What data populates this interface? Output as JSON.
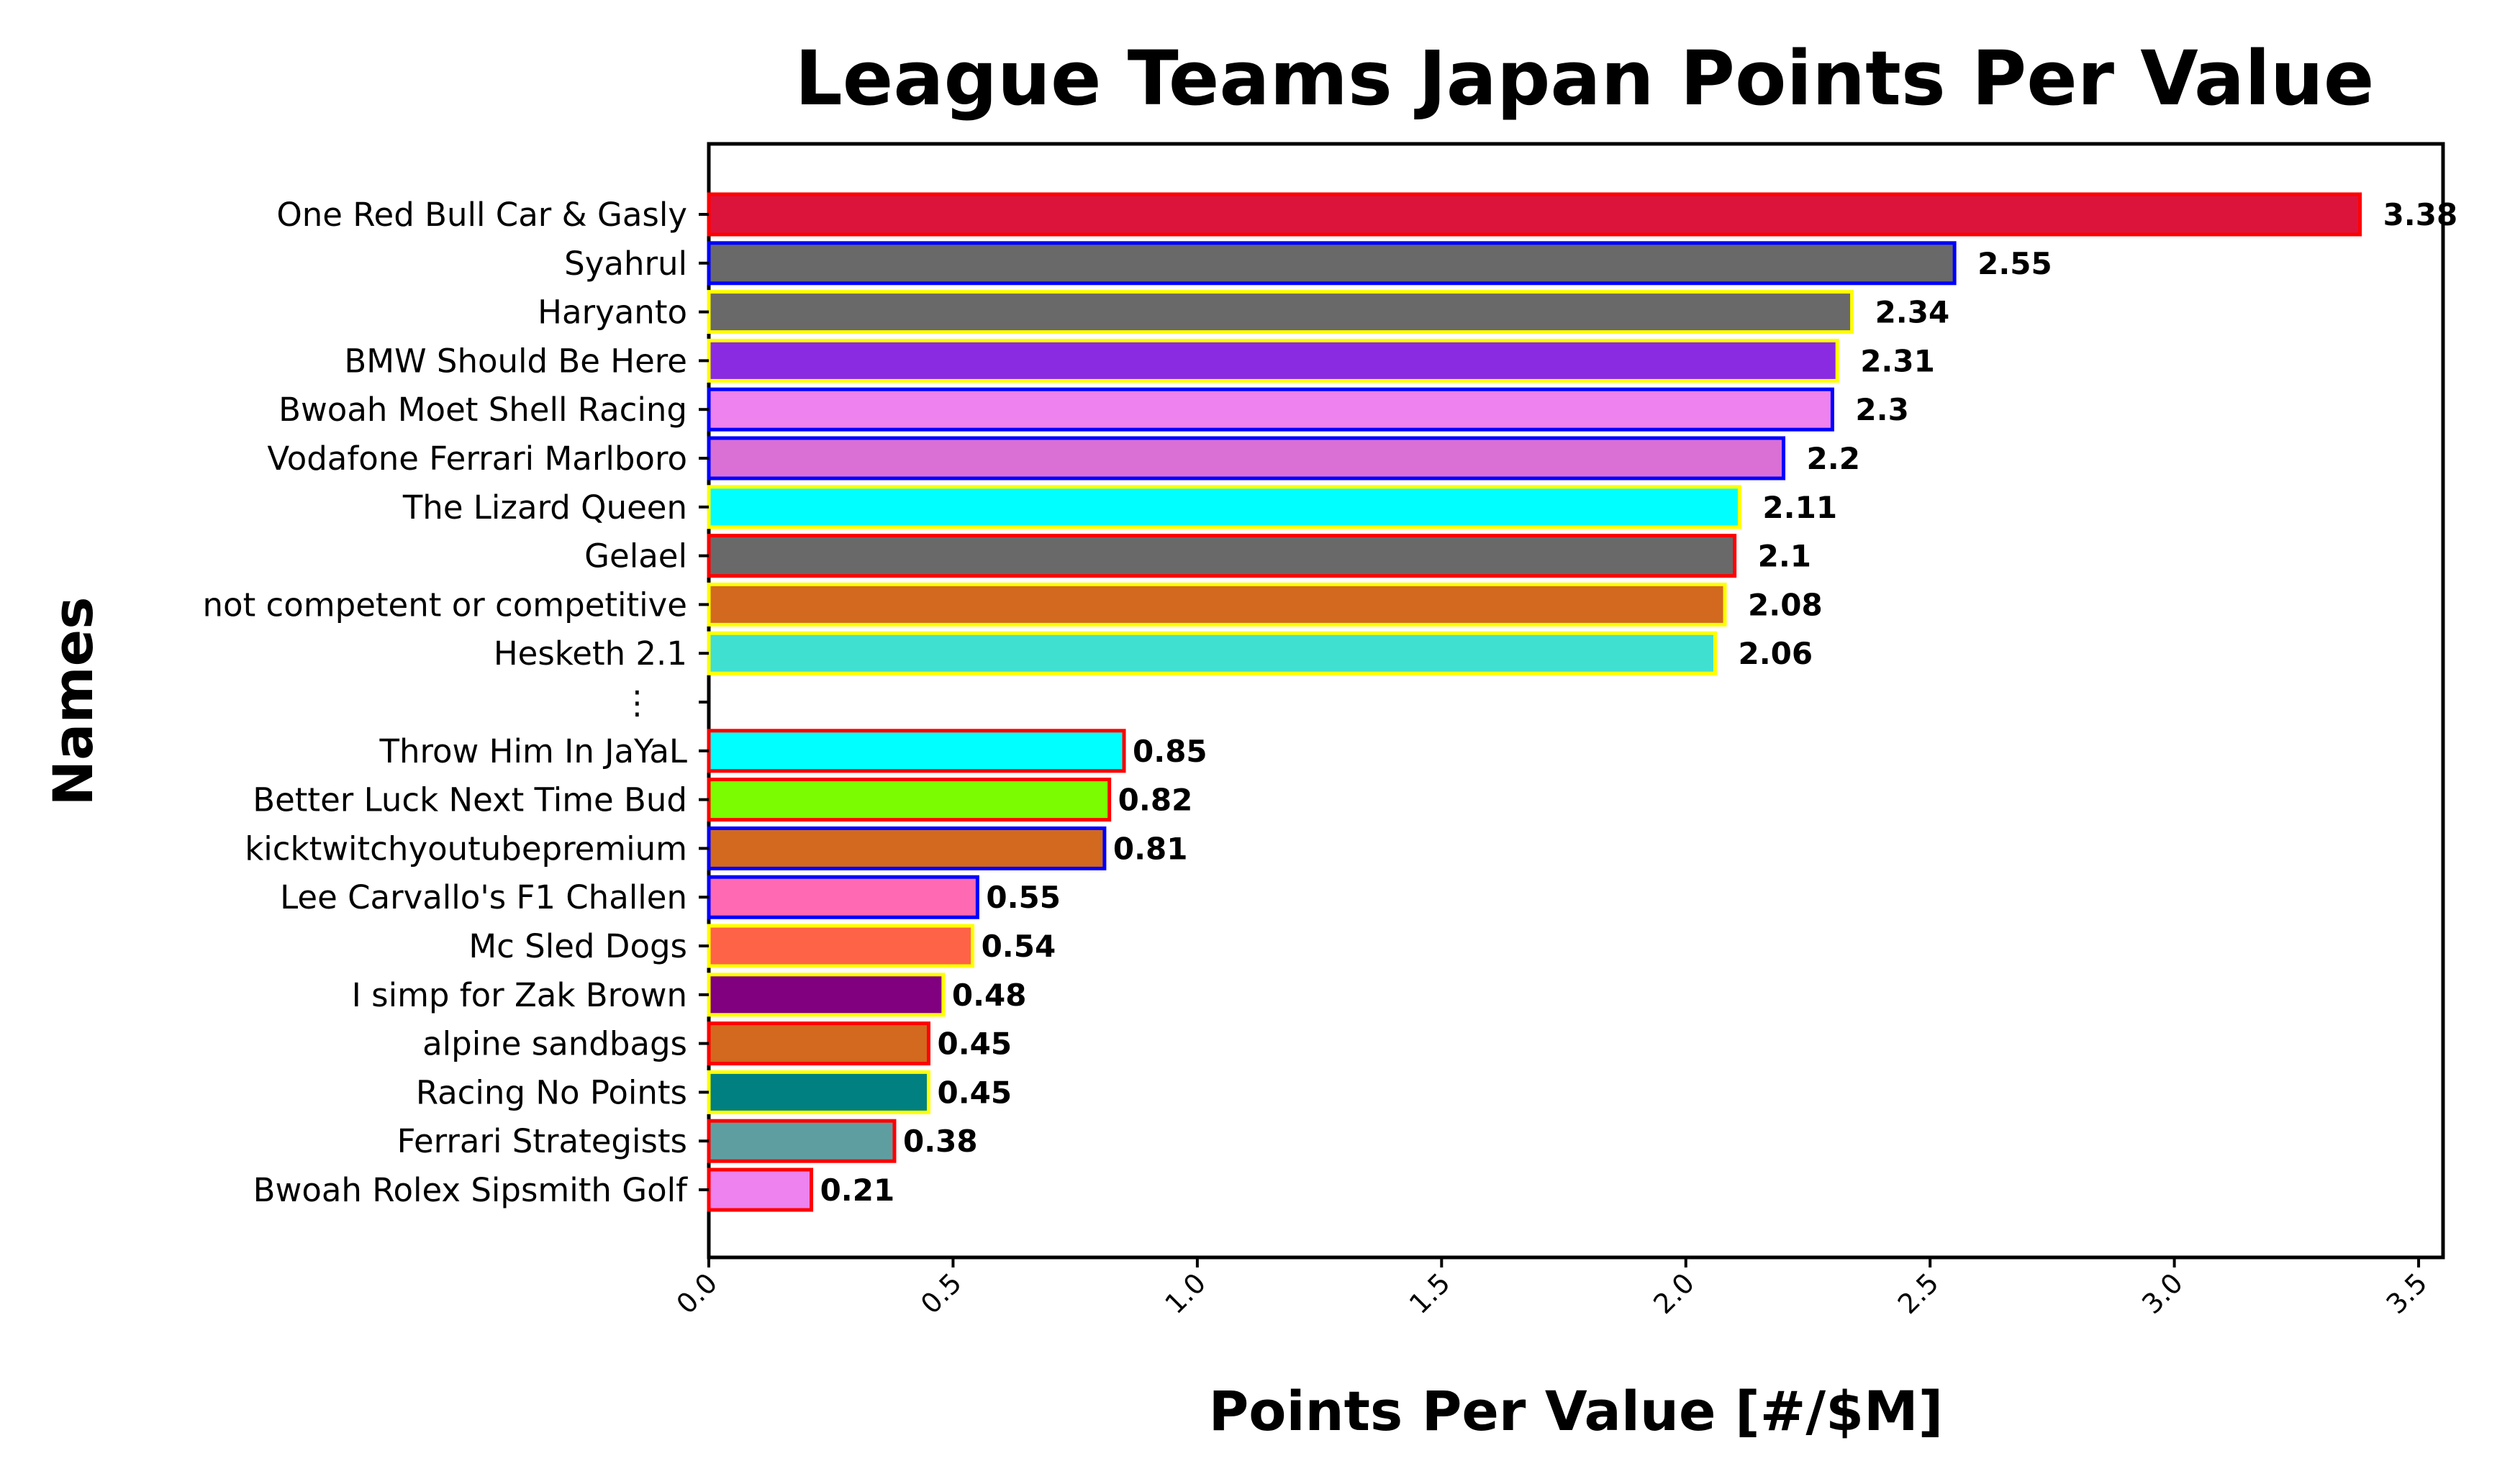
{
  "chart_data": {
    "type": "bar",
    "orientation": "horizontal",
    "title": "League Teams Japan Points Per Value",
    "xlabel": "Points Per Value [#/$M]",
    "ylabel": "Names",
    "xlim": [
      0,
      3.55
    ],
    "xticks": [
      "0.0",
      "0.5",
      "1.0",
      "1.5",
      "2.0",
      "2.5",
      "3.0",
      "3.5"
    ],
    "grid": false,
    "legend": "none",
    "gap_marker": "⋮",
    "bars": [
      {
        "name": "One Red Bull Car & Gasly",
        "value": 3.38,
        "label": "3.38",
        "fill": "#DC143C",
        "edge": "#FF0000"
      },
      {
        "name": "Syahrul",
        "value": 2.55,
        "label": "2.55",
        "fill": "#696969",
        "edge": "#0000FF"
      },
      {
        "name": "Haryanto",
        "value": 2.34,
        "label": "2.34",
        "fill": "#696969",
        "edge": "#FFFF00"
      },
      {
        "name": "BMW Should Be Here",
        "value": 2.31,
        "label": "2.31",
        "fill": "#8A2BE2",
        "edge": "#FFFF00"
      },
      {
        "name": "Bwoah Moet Shell Racing",
        "value": 2.3,
        "label": "2.3",
        "fill": "#EE82EE",
        "edge": "#0000FF"
      },
      {
        "name": "Vodafone Ferrari Marlboro",
        "value": 2.2,
        "label": "2.2",
        "fill": "#DA70D6",
        "edge": "#0000FF"
      },
      {
        "name": "The Lizard Queen",
        "value": 2.11,
        "label": "2.11",
        "fill": "#00FFFF",
        "edge": "#FFFF00"
      },
      {
        "name": "Gelael",
        "value": 2.1,
        "label": "2.1",
        "fill": "#696969",
        "edge": "#FF0000"
      },
      {
        "name": "not competent or competitive",
        "value": 2.08,
        "label": "2.08",
        "fill": "#D2691E",
        "edge": "#FFFF00"
      },
      {
        "name": "Hesketh 2.1",
        "value": 2.06,
        "label": "2.06",
        "fill": "#40E0D0",
        "edge": "#FFFF00"
      },
      {
        "name": "Throw Him In JaYaL",
        "value": 0.85,
        "label": "0.85",
        "fill": "#00FFFF",
        "edge": "#FF0000"
      },
      {
        "name": "Better Luck Next Time Bud",
        "value": 0.82,
        "label": "0.82",
        "fill": "#7CFC00",
        "edge": "#FF0000"
      },
      {
        "name": "kicktwitchyoutubepremium",
        "value": 0.81,
        "label": "0.81",
        "fill": "#D2691E",
        "edge": "#0000FF"
      },
      {
        "name": "Lee Carvallo's F1 Challen",
        "value": 0.55,
        "label": "0.55",
        "fill": "#FF69B4",
        "edge": "#0000FF"
      },
      {
        "name": "Mc Sled Dogs",
        "value": 0.54,
        "label": "0.54",
        "fill": "#FF6347",
        "edge": "#FFFF00"
      },
      {
        "name": "I simp for Zak Brown",
        "value": 0.48,
        "label": "0.48",
        "fill": "#800080",
        "edge": "#FFFF00"
      },
      {
        "name": "alpine sandbags",
        "value": 0.45,
        "label": "0.45",
        "fill": "#D2691E",
        "edge": "#FF0000"
      },
      {
        "name": "Racing No Points",
        "value": 0.45,
        "label": "0.45",
        "fill": "#008080",
        "edge": "#FFFF00"
      },
      {
        "name": "Ferrari Strategists",
        "value": 0.38,
        "label": "0.38",
        "fill": "#5F9EA0",
        "edge": "#FF0000"
      },
      {
        "name": "Bwoah Rolex Sipsmith Golf",
        "value": 0.21,
        "label": "0.21",
        "fill": "#EE82EE",
        "edge": "#FF0000"
      }
    ]
  }
}
